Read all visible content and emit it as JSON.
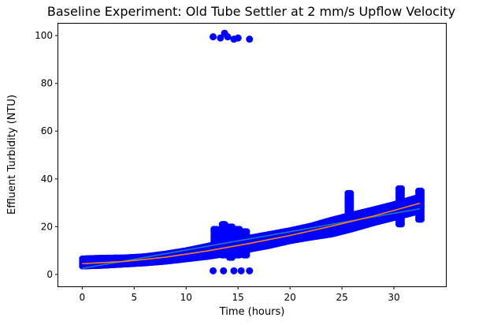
{
  "chart_data": {
    "type": "scatter",
    "title": "Baseline Experiment: Old Tube Settler at 2 mm/s Upflow Velocity",
    "xlabel": "Time (hours)",
    "ylabel": "Effluent Turbidity (NTU)",
    "xlim": [
      -2.3,
      35
    ],
    "ylim": [
      -5,
      105
    ],
    "xticks": [
      0,
      5,
      10,
      15,
      20,
      25,
      30
    ],
    "yticks": [
      0,
      20,
      40,
      60,
      80,
      100
    ],
    "grid": false,
    "legend": "none",
    "colors": {
      "points": "#0000ff",
      "linear_fit": "#1f77b4",
      "exponential_fit": "#ff7f0e"
    },
    "series": [
      {
        "kind": "scatter",
        "color": "#0000ff",
        "trend": {
          "x": [
            0,
            2,
            4,
            6,
            8,
            10,
            12,
            14,
            16,
            18,
            20,
            22,
            24,
            26,
            28,
            30,
            32.5
          ],
          "y": [
            5.0,
            5.3,
            5.6,
            6.1,
            7.0,
            8.2,
            9.6,
            11.3,
            12.8,
            14.4,
            16.2,
            17.9,
            19.8,
            22.0,
            24.3,
            26.5,
            29.5
          ],
          "spread": [
            1.6,
            1.6,
            1.4,
            1.4,
            1.6,
            1.8,
            2.2,
            2.6,
            2.4,
            2.4,
            2.2,
            2.4,
            3.0,
            3.0,
            2.8,
            2.8,
            3.0
          ]
        },
        "spikes": [
          {
            "x": 12.8,
            "low": 9,
            "high": 19
          },
          {
            "x": 13.6,
            "low": 8,
            "high": 21
          },
          {
            "x": 14.3,
            "low": 7,
            "high": 20
          },
          {
            "x": 15.0,
            "low": 8,
            "high": 19
          },
          {
            "x": 15.7,
            "low": 8,
            "high": 18
          },
          {
            "x": 25.7,
            "low": 20,
            "high": 34
          },
          {
            "x": 30.6,
            "low": 21,
            "high": 36
          },
          {
            "x": 32.5,
            "low": 23,
            "high": 35
          }
        ],
        "outliers_high": [
          {
            "x": 12.6,
            "y": 99.5
          },
          {
            "x": 13.3,
            "y": 99.0
          },
          {
            "x": 13.7,
            "y": 101.0
          },
          {
            "x": 14.0,
            "y": 99.5
          },
          {
            "x": 14.6,
            "y": 98.5
          },
          {
            "x": 15.0,
            "y": 99.0
          },
          {
            "x": 16.1,
            "y": 98.5
          }
        ],
        "outliers_low": [
          {
            "x": 12.6,
            "y": 1.5
          },
          {
            "x": 13.6,
            "y": 1.5
          },
          {
            "x": 14.6,
            "y": 1.5
          },
          {
            "x": 15.3,
            "y": 1.5
          },
          {
            "x": 16.1,
            "y": 1.5
          }
        ]
      },
      {
        "kind": "line",
        "color": "#1f77b4",
        "x": [
          0,
          32.5
        ],
        "y": [
          2.5,
          27.5
        ]
      },
      {
        "kind": "line",
        "color": "#ff7f0e",
        "x": [
          0,
          4,
          8,
          12,
          16,
          20,
          24,
          28,
          32.5
        ],
        "y": [
          4.5,
          5.4,
          7.2,
          9.8,
          12.9,
          16.3,
          20.2,
          24.4,
          29.8
        ]
      }
    ]
  }
}
